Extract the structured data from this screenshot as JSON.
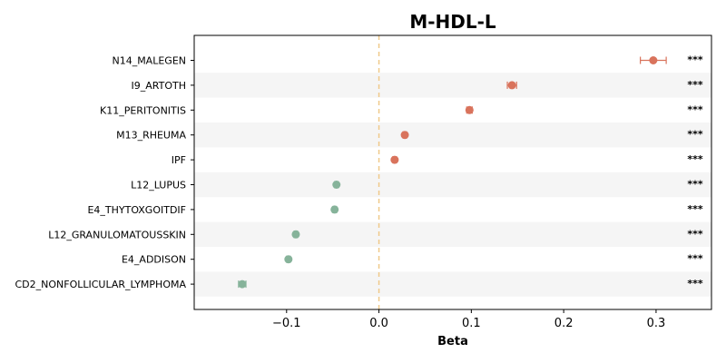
{
  "chart_data": {
    "type": "scatter",
    "title": "M-HDL-L",
    "xlabel": "Beta",
    "ylabel": "",
    "xlim": [
      -0.2,
      0.36
    ],
    "xticks": [
      -0.1,
      0.0,
      0.1,
      0.2,
      0.3
    ],
    "xtick_labels": [
      "−0.1",
      "0.0",
      "0.1",
      "0.2",
      "0.3"
    ],
    "reference_line_x": 0.0,
    "categories": [
      "N14_MALEGEN",
      "I9_ARTOTH",
      "K11_PERITONITIS",
      "M13_RHEUMA",
      "IPF",
      "L12_LUPUS",
      "E4_THYTOXGOITDIF",
      "L12_GRANULOMATOUSSKIN",
      "E4_ADDISON",
      "CD2_NONFOLLICULAR_LYMPHOMA"
    ],
    "beta": [
      0.297,
      0.144,
      0.098,
      0.028,
      0.017,
      -0.046,
      -0.048,
      -0.09,
      -0.098,
      -0.148
    ],
    "ci_low": [
      0.283,
      0.139,
      0.095,
      0.026,
      0.015,
      -0.048,
      -0.05,
      -0.092,
      -0.1,
      -0.152
    ],
    "ci_high": [
      0.311,
      0.149,
      0.101,
      0.03,
      0.019,
      -0.044,
      -0.046,
      -0.088,
      -0.096,
      -0.144
    ],
    "significance": [
      "***",
      "***",
      "***",
      "***",
      "***",
      "***",
      "***",
      "***",
      "***",
      "***"
    ],
    "colors": {
      "positive": "#d9735c",
      "negative": "#86b39a",
      "reference_line": "#f0c98a",
      "band": "#f5f5f5"
    },
    "grid": false
  }
}
